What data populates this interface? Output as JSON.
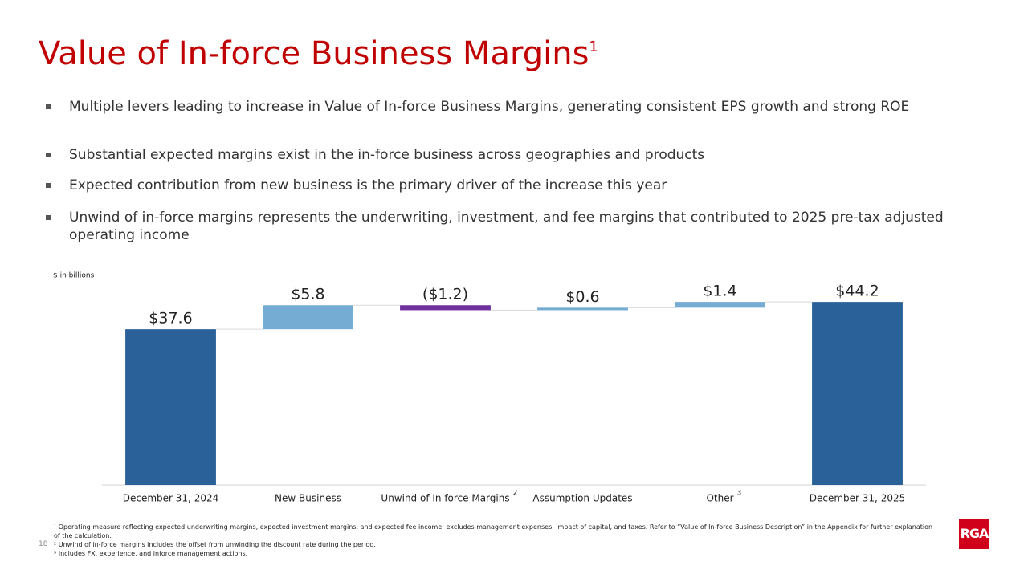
{
  "title": "Value of In-force Business Margins",
  "title_note": "1",
  "bullets": [
    "Multiple levers leading to increase in Value of In-force Business Margins, generating consistent EPS growth and strong ROE",
    "Substantial expected margins exist in the in-force business across geographies and products",
    "Expected contribution from new business is the primary driver of the increase this year",
    "Unwind of in-force margins represents the underwriting, investment, and fee margins that contributed to 2025 pre-tax adjusted operating income"
  ],
  "chart_data": {
    "type": "waterfall",
    "unit_label": "$ in billions",
    "categories": [
      "December 31, 2024",
      "New Business",
      "Unwind of In force Margins",
      "Assumption Updates",
      "Other",
      "December 31, 2025"
    ],
    "category_notes": [
      null,
      null,
      "2",
      null,
      "3",
      null
    ],
    "values": [
      37.6,
      5.8,
      -1.2,
      0.6,
      1.4,
      44.2
    ],
    "value_labels": [
      "$37.6",
      "$5.8",
      "($1.2)",
      "$0.6",
      "$1.4",
      "$44.2"
    ],
    "colors": [
      "#2b6199",
      "#74acd4",
      "#7030a0",
      "#74acd4",
      "#74acd4",
      "#2b6199"
    ],
    "ylim": [
      0,
      45
    ]
  },
  "footnotes": [
    "¹ Operating measure reflecting expected underwriting margins, expected investment margins, and expected fee income; excludes management expenses, impact of capital, and taxes. Refer to “Value of In-force Business Description” in the Appendix for further explanation of the calculation.",
    "² Unwind of in-force margins includes the offset from unwinding the discount rate during the period.",
    "³ Includes FX, experience, and inforce management actions."
  ],
  "page_number": "18",
  "logo": "RGA"
}
